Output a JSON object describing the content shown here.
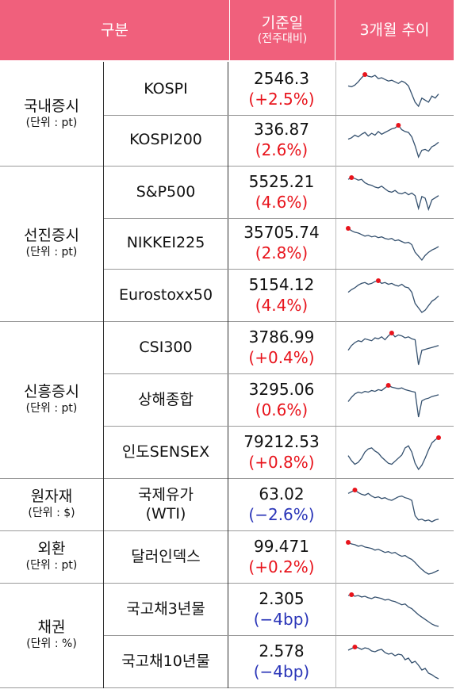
{
  "header": {
    "col_category": "구분",
    "col_value": "기준일",
    "col_value_sub": "(전주대비)",
    "col_trend": "3개월 추이"
  },
  "groups": [
    {
      "label": "국내증시",
      "unit": "(단위 : pt)"
    },
    {
      "label": "선진증시",
      "unit": "(단위 : pt)"
    },
    {
      "label": "신흥증시",
      "unit": "(단위 : pt)"
    },
    {
      "label": "원자재",
      "unit": "(단위 : $)"
    },
    {
      "label": "외환",
      "unit": "(단위 : pt)"
    },
    {
      "label": "채권",
      "unit": "(단위 : %)"
    }
  ],
  "rows": [
    {
      "name": "KOSPI",
      "value": "2546.3",
      "change": "(+2.5%)",
      "direction": "up",
      "spark": [
        60,
        58,
        62,
        70,
        80,
        88,
        84,
        82,
        86,
        78,
        80,
        76,
        72,
        74,
        70,
        66,
        72,
        68,
        60,
        40,
        20,
        10,
        30,
        25,
        20,
        35,
        30,
        40
      ]
    },
    {
      "name": "KOSPI200",
      "value": "336.87",
      "change": "(2.6%)",
      "direction": "up",
      "spark": [
        55,
        58,
        64,
        60,
        66,
        70,
        62,
        68,
        64,
        72,
        66,
        70,
        74,
        78,
        80,
        86,
        76,
        72,
        70,
        60,
        40,
        15,
        30,
        32,
        28,
        38,
        42,
        48
      ]
    },
    {
      "name": "S&P500",
      "value": "5525.21",
      "change": "(4.6%)",
      "direction": "up",
      "spark": [
        88,
        92,
        90,
        86,
        88,
        80,
        76,
        74,
        70,
        68,
        72,
        66,
        60,
        58,
        62,
        56,
        54,
        58,
        52,
        56,
        50,
        20,
        48,
        44,
        18,
        40,
        45,
        50
      ]
    },
    {
      "name": "NIKKEI225",
      "value": "35705.74",
      "change": "(2.8%)",
      "direction": "up",
      "spark": [
        92,
        86,
        82,
        80,
        76,
        72,
        74,
        70,
        72,
        68,
        70,
        66,
        64,
        66,
        60,
        62,
        58,
        54,
        56,
        50,
        30,
        20,
        10,
        22,
        30,
        36,
        40,
        45
      ]
    },
    {
      "name": "Eurostoxx50",
      "value": "5154.12",
      "change": "(4.4%)",
      "direction": "up",
      "spark": [
        60,
        66,
        70,
        76,
        80,
        82,
        78,
        80,
        84,
        86,
        80,
        82,
        78,
        80,
        76,
        74,
        78,
        72,
        70,
        60,
        35,
        25,
        15,
        20,
        30,
        40,
        45,
        52
      ]
    },
    {
      "name": "CSI300",
      "value": "3786.99",
      "change": "(+0.4%)",
      "direction": "up",
      "spark": [
        50,
        60,
        66,
        70,
        68,
        74,
        72,
        70,
        76,
        74,
        78,
        72,
        80,
        86,
        78,
        82,
        80,
        76,
        78,
        74,
        72,
        20,
        50,
        52,
        54,
        56,
        58,
        60
      ]
    },
    {
      "name": "상해종합",
      "value": "3295.06",
      "change": "(0.6%)",
      "direction": "up",
      "spark": [
        48,
        58,
        66,
        70,
        68,
        72,
        70,
        74,
        72,
        76,
        74,
        80,
        86,
        82,
        80,
        78,
        80,
        76,
        74,
        72,
        70,
        12,
        50,
        54,
        56,
        60,
        62,
        64
      ]
    },
    {
      "name": "인도SENSEX",
      "value": "79212.53",
      "change": "(+0.8%)",
      "direction": "up",
      "spark": [
        55,
        45,
        38,
        42,
        50,
        62,
        68,
        70,
        64,
        60,
        52,
        46,
        40,
        38,
        44,
        50,
        56,
        70,
        74,
        62,
        40,
        28,
        36,
        50,
        66,
        80,
        86,
        90
      ]
    },
    {
      "name": "국제유가\n(WTI)",
      "value": "63.02",
      "change": "(−2.6%)",
      "direction": "down",
      "spark": [
        82,
        86,
        90,
        84,
        80,
        78,
        82,
        76,
        72,
        74,
        70,
        72,
        68,
        66,
        70,
        74,
        76,
        72,
        70,
        66,
        30,
        20,
        22,
        18,
        20,
        16,
        20,
        22
      ]
    },
    {
      "name": "달러인덱스",
      "value": "99.471",
      "change": "(+0.2%)",
      "direction": "up",
      "spark": [
        92,
        88,
        86,
        82,
        84,
        80,
        78,
        76,
        72,
        74,
        70,
        66,
        68,
        64,
        66,
        60,
        56,
        58,
        52,
        48,
        40,
        30,
        22,
        15,
        10,
        12,
        16,
        20
      ]
    },
    {
      "name": "국고채3년물",
      "value": "2.305",
      "change": "(−4bp)",
      "direction": "down",
      "spark": [
        90,
        92,
        88,
        90,
        86,
        88,
        84,
        82,
        86,
        84,
        82,
        78,
        80,
        76,
        74,
        70,
        66,
        68,
        60,
        56,
        48,
        40,
        34,
        28,
        22,
        16,
        12,
        10
      ]
    },
    {
      "name": "국고채10년물",
      "value": "2.578",
      "change": "(−4bp)",
      "direction": "down",
      "spark": [
        80,
        84,
        88,
        86,
        82,
        86,
        84,
        78,
        76,
        80,
        82,
        74,
        70,
        72,
        66,
        70,
        68,
        56,
        60,
        48,
        52,
        42,
        30,
        34,
        22,
        18,
        12,
        8
      ]
    }
  ],
  "colors": {
    "header": "#f0607c",
    "up": "#e8141c",
    "down": "#2a35b8",
    "spark_line": "#34506e",
    "spark_marker": "#e8141c"
  }
}
